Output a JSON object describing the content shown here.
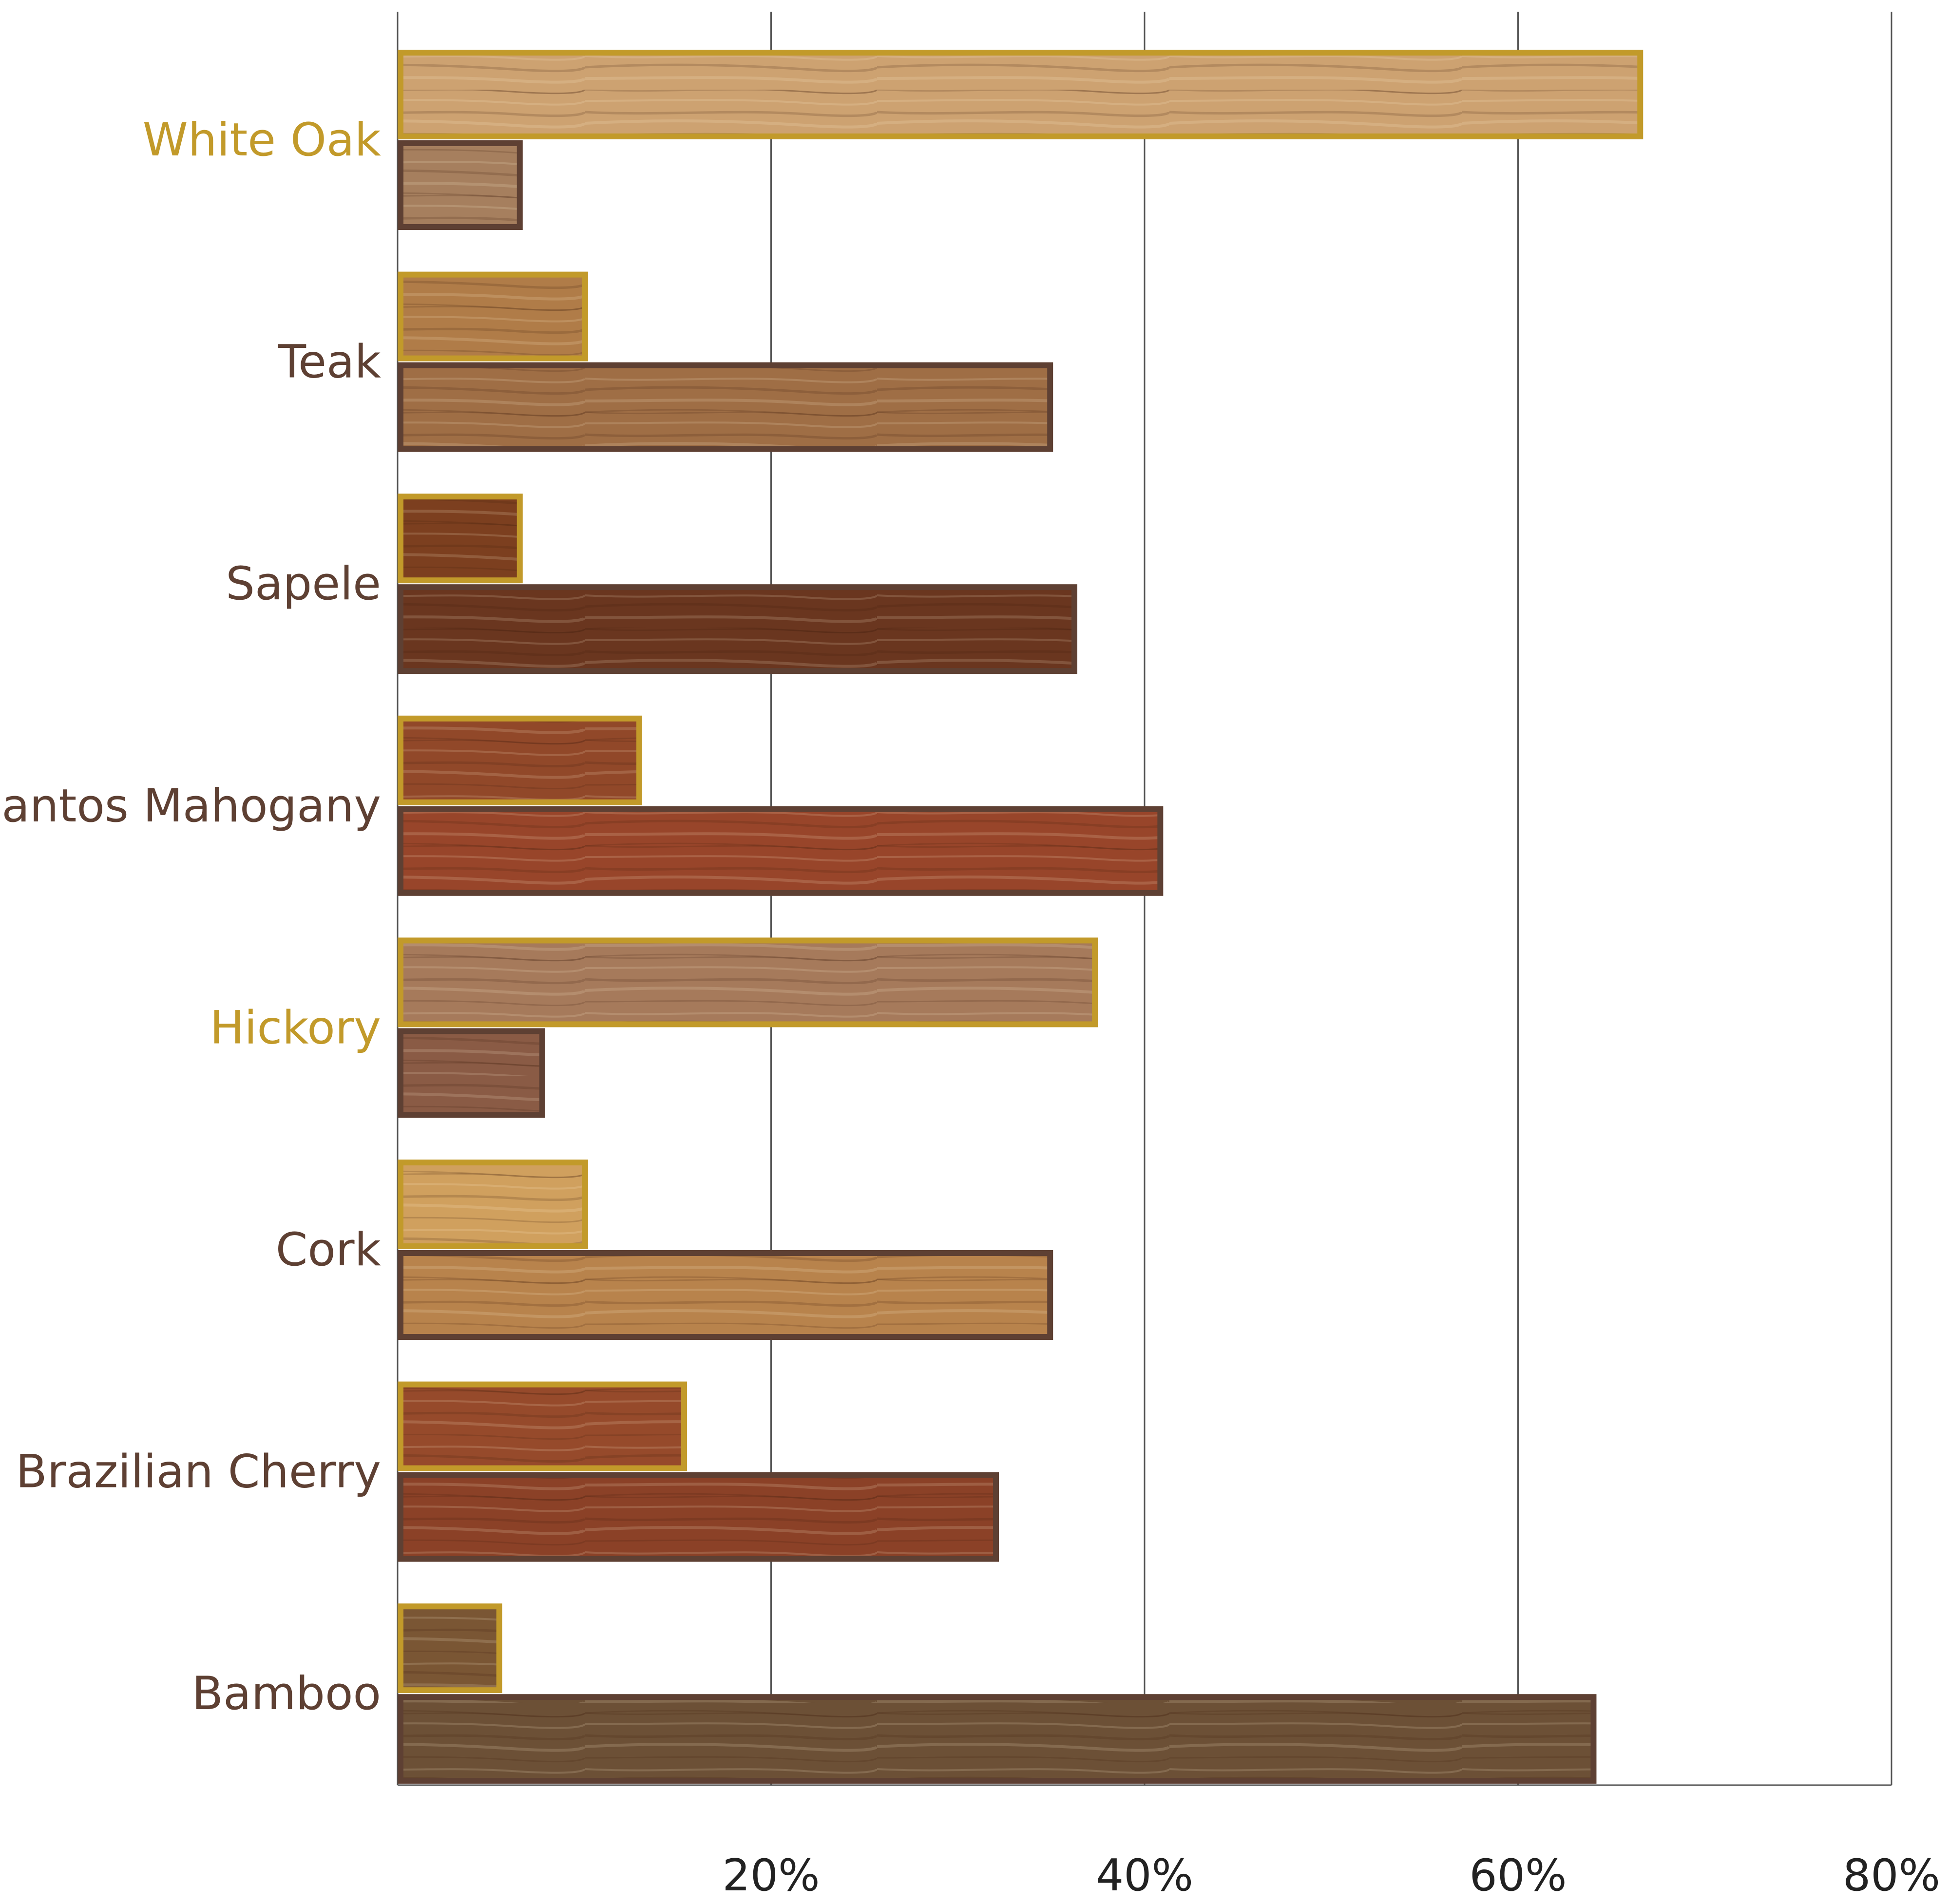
{
  "chart_data": {
    "type": "bar",
    "orientation": "horizontal",
    "categories": [
      "White Oak",
      "Teak",
      "Sapele",
      "Santos Mahogany",
      "Hickory",
      "Cork",
      "Brazilian Cherry",
      "Bamboo"
    ],
    "highlighted_categories": [
      "White Oak",
      "Hickory"
    ],
    "series": [
      {
        "values": [
          66.7,
          10.2,
          6.7,
          13.1,
          37.5,
          10.2,
          15.5,
          5.6
        ]
      },
      {
        "values": [
          6.7,
          35.1,
          36.4,
          41.0,
          7.9,
          35.1,
          32.2,
          64.2
        ]
      }
    ],
    "x_ticks": [
      "20%",
      "40%",
      "60%",
      "80%"
    ],
    "xlim": [
      0,
      80
    ],
    "grid": "vertical",
    "colors": {
      "series_1_border": "#c29a2a",
      "series_2_border": "#5e4033",
      "highlight_label": "#c29a2a",
      "label": "#5e4033",
      "grid": "#555555"
    },
    "wood_tones": [
      [
        "#cda271",
        "#a67f5e"
      ],
      [
        "#b07c48",
        "#9f6e45"
      ],
      [
        "#7c3f1f",
        "#6a361f"
      ],
      [
        "#914829",
        "#98452a"
      ],
      [
        "#a67a5b",
        "#8a5b45"
      ],
      [
        "#d0a05e",
        "#b8834c"
      ],
      [
        "#964a2b",
        "#8b4127"
      ],
      [
        "#7a5634",
        "#6c5036"
      ]
    ]
  }
}
